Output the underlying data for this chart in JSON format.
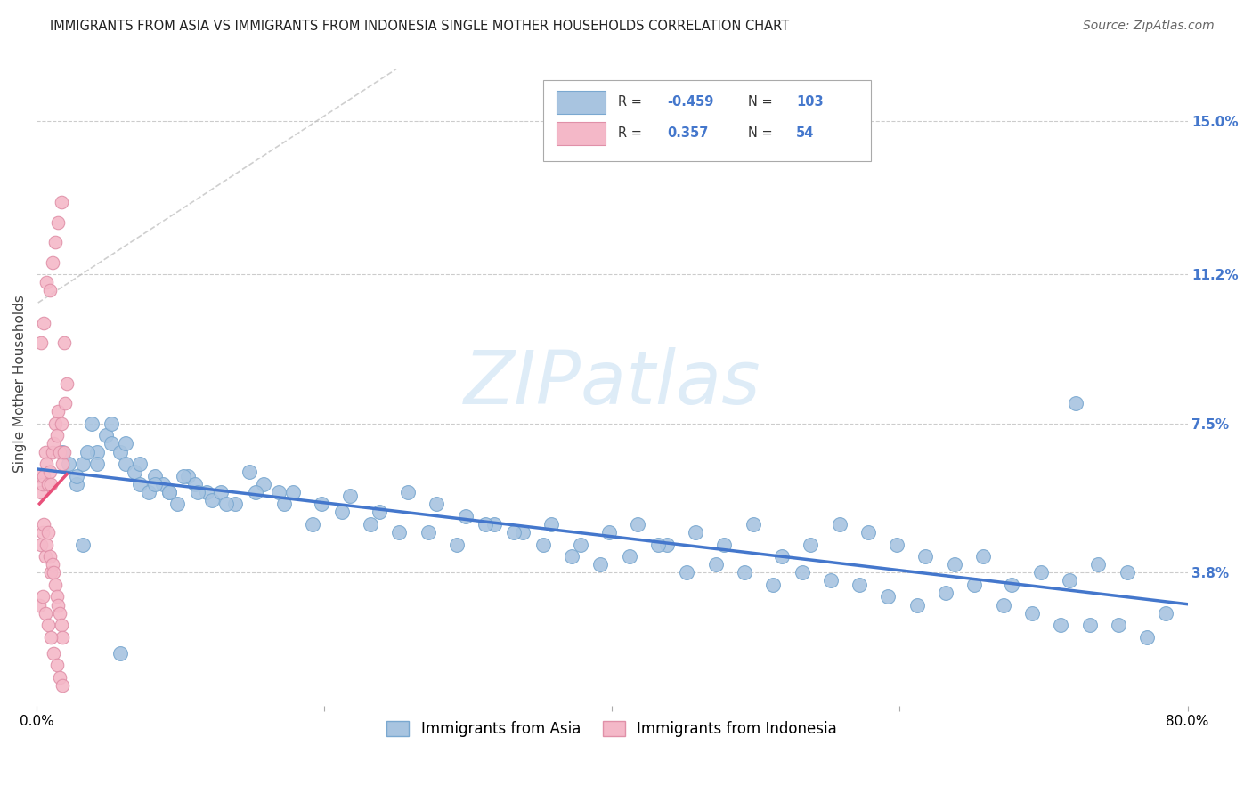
{
  "title": "IMMIGRANTS FROM ASIA VS IMMIGRANTS FROM INDONESIA SINGLE MOTHER HOUSEHOLDS CORRELATION CHART",
  "source": "Source: ZipAtlas.com",
  "ylabel": "Single Mother Households",
  "ytick_labels": [
    "15.0%",
    "11.2%",
    "7.5%",
    "3.8%"
  ],
  "ytick_values": [
    0.15,
    0.112,
    0.075,
    0.038
  ],
  "xlim": [
    0.0,
    0.8
  ],
  "ylim": [
    0.005,
    0.165
  ],
  "series1_color": "#a8c4e0",
  "series2_color": "#f4b8c8",
  "series1_edge": "#7aa8d0",
  "series2_edge": "#e090a8",
  "trend1_color": "#4477cc",
  "trend2_color": "#e8507a",
  "watermark_color": "#d0e4f5",
  "grid_color": "#cccccc",
  "background": "#ffffff",
  "asia_x": [
    0.018,
    0.022,
    0.028,
    0.032,
    0.038,
    0.042,
    0.048,
    0.052,
    0.058,
    0.062,
    0.068,
    0.072,
    0.078,
    0.082,
    0.088,
    0.092,
    0.098,
    0.105,
    0.11,
    0.118,
    0.122,
    0.128,
    0.138,
    0.148,
    0.158,
    0.168,
    0.178,
    0.198,
    0.218,
    0.238,
    0.258,
    0.278,
    0.298,
    0.318,
    0.338,
    0.358,
    0.378,
    0.398,
    0.418,
    0.438,
    0.458,
    0.478,
    0.498,
    0.518,
    0.538,
    0.558,
    0.578,
    0.598,
    0.618,
    0.638,
    0.658,
    0.678,
    0.698,
    0.718,
    0.738,
    0.758,
    0.028,
    0.035,
    0.042,
    0.052,
    0.062,
    0.072,
    0.082,
    0.092,
    0.102,
    0.112,
    0.132,
    0.152,
    0.172,
    0.192,
    0.212,
    0.232,
    0.252,
    0.272,
    0.292,
    0.312,
    0.332,
    0.352,
    0.372,
    0.392,
    0.412,
    0.432,
    0.452,
    0.472,
    0.492,
    0.512,
    0.532,
    0.552,
    0.572,
    0.592,
    0.612,
    0.632,
    0.652,
    0.672,
    0.692,
    0.712,
    0.732,
    0.752,
    0.772,
    0.032,
    0.058,
    0.785,
    0.722
  ],
  "asia_y": [
    0.068,
    0.065,
    0.06,
    0.065,
    0.075,
    0.068,
    0.072,
    0.07,
    0.068,
    0.065,
    0.063,
    0.06,
    0.058,
    0.062,
    0.06,
    0.058,
    0.055,
    0.062,
    0.06,
    0.058,
    0.056,
    0.058,
    0.055,
    0.063,
    0.06,
    0.058,
    0.058,
    0.055,
    0.057,
    0.053,
    0.058,
    0.055,
    0.052,
    0.05,
    0.048,
    0.05,
    0.045,
    0.048,
    0.05,
    0.045,
    0.048,
    0.045,
    0.05,
    0.042,
    0.045,
    0.05,
    0.048,
    0.045,
    0.042,
    0.04,
    0.042,
    0.035,
    0.038,
    0.036,
    0.04,
    0.038,
    0.062,
    0.068,
    0.065,
    0.075,
    0.07,
    0.065,
    0.06,
    0.058,
    0.062,
    0.058,
    0.055,
    0.058,
    0.055,
    0.05,
    0.053,
    0.05,
    0.048,
    0.048,
    0.045,
    0.05,
    0.048,
    0.045,
    0.042,
    0.04,
    0.042,
    0.045,
    0.038,
    0.04,
    0.038,
    0.035,
    0.038,
    0.036,
    0.035,
    0.032,
    0.03,
    0.033,
    0.035,
    0.03,
    0.028,
    0.025,
    0.025,
    0.025,
    0.022,
    0.045,
    0.018,
    0.028,
    0.08
  ],
  "indo_x": [
    0.002,
    0.003,
    0.004,
    0.005,
    0.006,
    0.007,
    0.008,
    0.009,
    0.01,
    0.011,
    0.012,
    0.013,
    0.014,
    0.015,
    0.016,
    0.017,
    0.018,
    0.019,
    0.02,
    0.021,
    0.003,
    0.004,
    0.005,
    0.006,
    0.007,
    0.008,
    0.009,
    0.01,
    0.011,
    0.012,
    0.013,
    0.014,
    0.015,
    0.016,
    0.017,
    0.018,
    0.003,
    0.005,
    0.007,
    0.009,
    0.011,
    0.013,
    0.015,
    0.017,
    0.019,
    0.002,
    0.004,
    0.006,
    0.008,
    0.01,
    0.012,
    0.014,
    0.016,
    0.018
  ],
  "indo_y": [
    0.062,
    0.058,
    0.06,
    0.062,
    0.068,
    0.065,
    0.06,
    0.063,
    0.06,
    0.068,
    0.07,
    0.075,
    0.072,
    0.078,
    0.068,
    0.075,
    0.065,
    0.068,
    0.08,
    0.085,
    0.045,
    0.048,
    0.05,
    0.042,
    0.045,
    0.048,
    0.042,
    0.038,
    0.04,
    0.038,
    0.035,
    0.032,
    0.03,
    0.028,
    0.025,
    0.022,
    0.095,
    0.1,
    0.11,
    0.108,
    0.115,
    0.12,
    0.125,
    0.13,
    0.095,
    0.03,
    0.032,
    0.028,
    0.025,
    0.022,
    0.018,
    0.015,
    0.012,
    0.01
  ]
}
